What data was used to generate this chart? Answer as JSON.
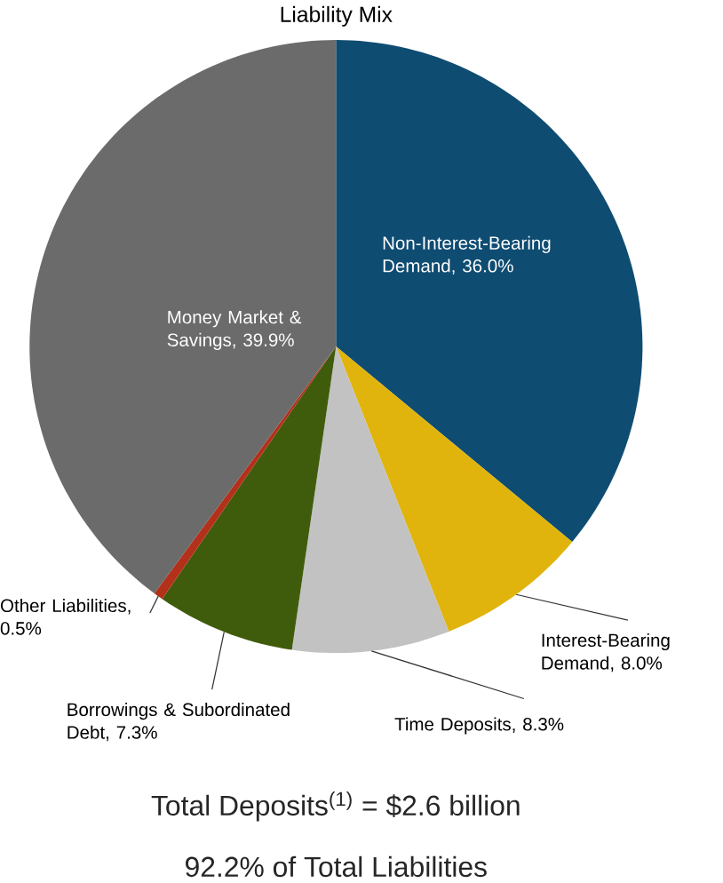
{
  "chart_data": {
    "type": "pie",
    "title": "Liability Mix",
    "categories": [
      "Non-Interest-Bearing Demand, 36.0%",
      "Interest-Bearing Demand, 8.0%",
      "Time Deposits, 8.3%",
      "Borrowings & Subordinated Debt, 7.3%",
      "Other Liabilities, 0.5%",
      "Money Market & Savings, 39.9%"
    ],
    "values": [
      36.0,
      8.0,
      8.3,
      7.3,
      0.5,
      39.9
    ],
    "colors": [
      "#0f4c72",
      "#e0b40c",
      "#c2c2c2",
      "#3f5c0c",
      "#b3301a",
      "#6b6b6b"
    ],
    "annotations": [
      "Total Deposits$^{(1)}$ = $2.6 billion",
      "92.2% of Total Liabilities"
    ]
  }
}
